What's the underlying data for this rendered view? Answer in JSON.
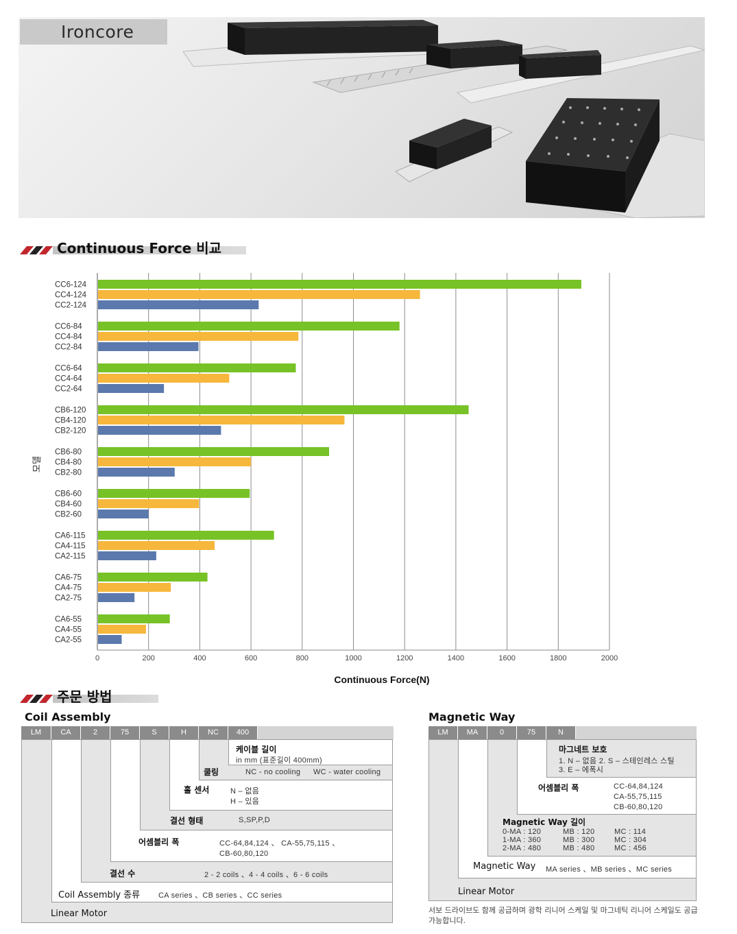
{
  "hero": {
    "label": "Ironcore"
  },
  "section1": {
    "title": "Continuous Force 비교"
  },
  "chart_data": {
    "type": "bar",
    "orientation": "horizontal",
    "xlabel": "Continuous Force(N)",
    "ylabel": "모델",
    "xlim": [
      0,
      2000
    ],
    "xticks": [
      "0",
      "200",
      "400",
      "600",
      "800",
      "1000",
      "1200",
      "1400",
      "1600",
      "1800",
      "2000"
    ],
    "grid": true,
    "colors": {
      "6": "#77c226",
      "4": "#f6b73c",
      "2": "#5b79ad"
    },
    "groups": [
      {
        "bars": [
          {
            "label": "CC6-124",
            "value": 1890
          },
          {
            "label": "CC4-124",
            "value": 1260
          },
          {
            "label": "CC2-124",
            "value": 630
          }
        ]
      },
      {
        "bars": [
          {
            "label": "CC6-84",
            "value": 1180
          },
          {
            "label": "CC4-84",
            "value": 785
          },
          {
            "label": "CC2-84",
            "value": 395
          }
        ]
      },
      {
        "bars": [
          {
            "label": "CC6-64",
            "value": 775
          },
          {
            "label": "CC4-64",
            "value": 515
          },
          {
            "label": "CC2-64",
            "value": 260
          }
        ]
      },
      {
        "bars": [
          {
            "label": "CB6-120",
            "value": 1450
          },
          {
            "label": "CB4-120",
            "value": 965
          },
          {
            "label": "CB2-120",
            "value": 483
          }
        ]
      },
      {
        "bars": [
          {
            "label": "CB6-80",
            "value": 905
          },
          {
            "label": "CB4-80",
            "value": 600
          },
          {
            "label": "CB2-80",
            "value": 302
          }
        ]
      },
      {
        "bars": [
          {
            "label": "CB6-60",
            "value": 595
          },
          {
            "label": "CB4-60",
            "value": 397
          },
          {
            "label": "CB2-60",
            "value": 200
          }
        ]
      },
      {
        "bars": [
          {
            "label": "CA6-115",
            "value": 690
          },
          {
            "label": "CA4-115",
            "value": 458
          },
          {
            "label": "CA2-115",
            "value": 230
          }
        ]
      },
      {
        "bars": [
          {
            "label": "CA6-75",
            "value": 430
          },
          {
            "label": "CA4-75",
            "value": 287
          },
          {
            "label": "CA2-75",
            "value": 145
          }
        ]
      },
      {
        "bars": [
          {
            "label": "CA6-55",
            "value": 283
          },
          {
            "label": "CA4-55",
            "value": 190
          },
          {
            "label": "CA2-55",
            "value": 95
          }
        ]
      }
    ]
  },
  "section2": {
    "title": "주문 방법"
  },
  "coil": {
    "title": "Coil Assembly",
    "header": [
      "LM",
      "CA",
      "2",
      "75",
      "S",
      "H",
      "NC",
      "400"
    ],
    "cable_label": "케이블 길이",
    "cable_value": "in mm (표준길이 400mm)",
    "cooling_label": "쿨링",
    "cooling_nc": "NC - no cooling",
    "cooling_wc": "WC - water cooling",
    "hall_label": "홀 센서",
    "hall_n": "N  –  없음",
    "hall_h": "H  –  있음",
    "wiring_label": "결선 형태",
    "wiring_value": "S,SP,P,D",
    "width_label": "어셈블리 폭",
    "width_value_1": "CC-64,84,124    、  CA-55,75,115    、",
    "width_value_2": "CB-60,80,120",
    "coils_label": "결선 수",
    "coils_value": "2 - 2 coils  、4 - 4 coils  、6 - 6 coils",
    "type_label": "Coil Assembly 종류",
    "type_value": "CA series  、CB series   、CC series",
    "motor_label": "Linear Motor"
  },
  "magway": {
    "title": "Magnetic Way",
    "header": [
      "LM",
      "MA",
      "0",
      "75",
      "N"
    ],
    "protect_label": "마그네트 보호",
    "protect_1": "1. N – 없음       2. S – 스테인레스  스틸",
    "protect_2": "3. E – 에폭시",
    "width_label": "어셈블리 폭",
    "width_1": "CC-64,84,124",
    "width_2": "CA-55,75,115",
    "width_3": "CB-60,80,120",
    "length_label": "Magnetic Way 길이",
    "length_col1": [
      "0-MA : 120",
      "1-MA : 360",
      "2-MA : 480"
    ],
    "length_col2": [
      "MB : 120",
      "MB : 300",
      "MB : 480"
    ],
    "length_col3": [
      "MC : 114",
      "MC : 304",
      "MC : 456"
    ],
    "series_label": "Magnetic Way",
    "series_value": "MA series 、MB series 、MC series",
    "motor_label": "Linear Motor",
    "note": "서보 드라이브도 함께 공급하며 광학 리니어 스케일 및 마그네틱 리니어 스케일도 공급 가능합니다."
  }
}
